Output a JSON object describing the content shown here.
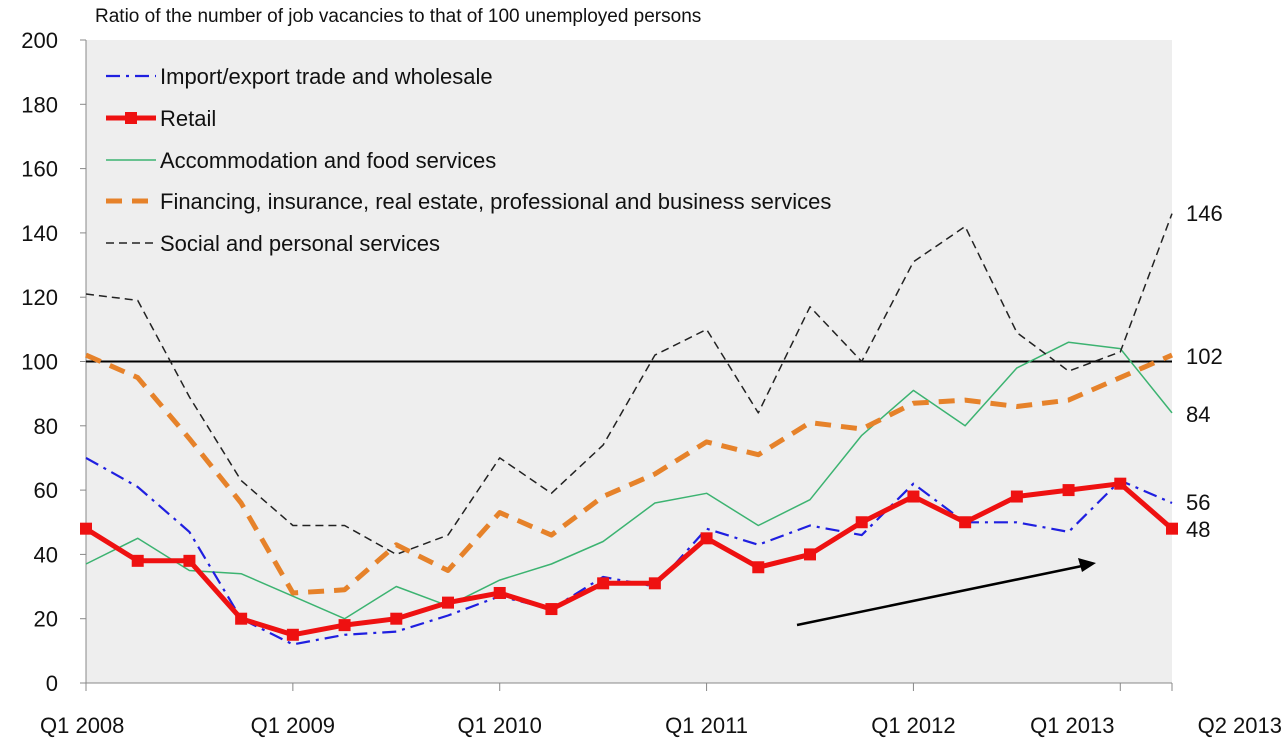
{
  "chart_data": {
    "type": "line",
    "ylabel": "Ratio of the number of job vacancies to that of  100 unemployed persons",
    "ylim": [
      0,
      200
    ],
    "yticks": [
      "0",
      "20",
      "40",
      "60",
      "80",
      "100",
      "120",
      "140",
      "160",
      "180",
      "200"
    ],
    "x": [
      "Q1 2008",
      "Q2 2008",
      "Q3 2008",
      "Q4 2008",
      "Q1 2009",
      "Q2 2009",
      "Q3 2009",
      "Q4 2009",
      "Q1 2010",
      "Q2 2010",
      "Q3 2010",
      "Q4 2010",
      "Q1 2011",
      "Q2 2011",
      "Q3 2011",
      "Q4 2011",
      "Q1 2012",
      "Q2 2012",
      "Q3 2012",
      "Q4 2012",
      "Q1 2013",
      "Q2 2013"
    ],
    "xtick_labels": [
      "Q1 2008",
      "Q1 2009",
      "Q1 2010",
      "Q1 2011",
      "Q1 2012",
      "Q1 2013",
      "Q2 2013"
    ],
    "reference_line": 100,
    "background": "#eeeeee",
    "grid": false,
    "legend_position": "top-left",
    "series": [
      {
        "name": "Import/export trade and wholesale",
        "color": "#1f1fe0",
        "style": "dashdot",
        "values": [
          70,
          61,
          47,
          20,
          12,
          15,
          16,
          21,
          27,
          23,
          33,
          30,
          48,
          43,
          49,
          46,
          62,
          50,
          50,
          47,
          63,
          56
        ]
      },
      {
        "name": "Retail",
        "color": "#ee1111",
        "style": "solid-marker",
        "values": [
          48,
          38,
          38,
          20,
          15,
          18,
          20,
          25,
          28,
          23,
          31,
          31,
          45,
          36,
          40,
          50,
          58,
          50,
          58,
          60,
          62,
          48
        ]
      },
      {
        "name": "Accommodation and food services",
        "color": "#3cb371",
        "style": "thin",
        "values": [
          37,
          45,
          35,
          34,
          27,
          20,
          30,
          24,
          32,
          37,
          44,
          56,
          59,
          49,
          57,
          77,
          91,
          80,
          98,
          106,
          104,
          84
        ]
      },
      {
        "name": "Financing, insurance, real estate, professional and business services",
        "color": "#e6822a",
        "style": "dashed-thick",
        "values": [
          102,
          95,
          76,
          56,
          28,
          29,
          43,
          35,
          53,
          46,
          58,
          65,
          75,
          71,
          81,
          79,
          87,
          88,
          86,
          88,
          95,
          102
        ]
      },
      {
        "name": "Social and personal services",
        "color": "#222222",
        "style": "dashed-thin",
        "values": [
          121,
          119,
          89,
          63,
          49,
          49,
          40,
          46,
          70,
          59,
          74,
          102,
          110,
          84,
          117,
          100,
          131,
          142,
          109,
          97,
          103,
          146
        ]
      }
    ],
    "end_labels": [
      "146",
      "102",
      "84",
      "56",
      "48"
    ],
    "annotations": [
      {
        "type": "arrow",
        "description": "upward trend arrow"
      }
    ]
  }
}
